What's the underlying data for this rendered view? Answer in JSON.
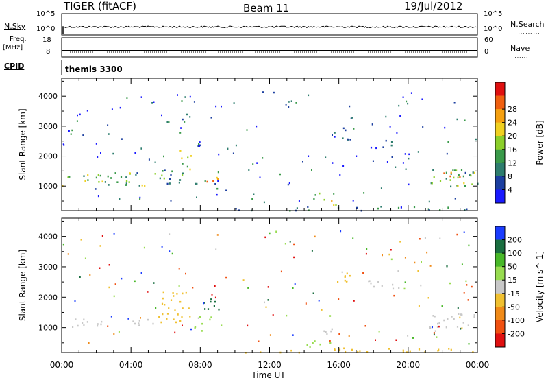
{
  "header": {
    "radar": "TIGER (fitACF)",
    "beam": "Beam 11",
    "date": "19/Jul/2012"
  },
  "strip_labels": {
    "nsky": "N.Sky",
    "nsearch": "N.Search",
    "freq_top": "Freq.",
    "freq_unit": "[MHz]",
    "nave": "Nave",
    "cpid": "CPID",
    "cpid_name": "themis 3300",
    "noise_left_ticks": [
      "10^5",
      "10^0"
    ],
    "noise_right_ticks": [
      "10^5",
      "10^0"
    ],
    "freq_left_ticks": [
      "18",
      "8"
    ],
    "nave_right_ticks": [
      "60",
      "0"
    ]
  },
  "chart_data": [
    {
      "type": "heatmap",
      "panel": "power",
      "ylabel": "Slant Range [km]",
      "ylim": [
        180,
        4600
      ],
      "yticks": [
        1000,
        2000,
        3000,
        4000
      ],
      "xlim": [
        0,
        24
      ],
      "colorbar": {
        "label": "Power [dB]",
        "ticks": [
          "4",
          "8",
          "12",
          "16",
          "20",
          "24",
          "28"
        ],
        "colors": [
          "#1a1aff",
          "#1c3fa0",
          "#2e7d6e",
          "#3a9a4a",
          "#8ccf2a",
          "#f0d020",
          "#f5a010",
          "#f06010",
          "#e01010"
        ]
      },
      "regions": [
        {
          "t": [
            0.0,
            2.5
          ],
          "r": [
            1000,
            1400
          ],
          "v": 14
        },
        {
          "t": [
            2.5,
            5.0
          ],
          "r": [
            1000,
            1500
          ],
          "v": 12
        },
        {
          "t": [
            5.0,
            7.0
          ],
          "r": [
            1100,
            1700
          ],
          "v": 10
        },
        {
          "t": [
            6.8,
            7.5
          ],
          "r": [
            1500,
            2300
          ],
          "v": 14
        },
        {
          "t": [
            7.5,
            9.0
          ],
          "r": [
            900,
            1200
          ],
          "v": 8
        },
        {
          "t": [
            8.2,
            9.0
          ],
          "r": [
            1050,
            1400
          ],
          "v": 20
        },
        {
          "t": [
            7.8,
            8.3
          ],
          "r": [
            2100,
            2600
          ],
          "v": 6
        },
        {
          "t": [
            14.2,
            15.2
          ],
          "r": [
            500,
            800
          ],
          "v": 12
        },
        {
          "t": [
            15.0,
            16.0
          ],
          "r": [
            300,
            600
          ],
          "v": 16
        },
        {
          "t": [
            10.0,
            24.0
          ],
          "r": [
            200,
            350
          ],
          "v": 8
        },
        {
          "t": [
            15.5,
            17.0
          ],
          "r": [
            2500,
            2900
          ],
          "v": 6
        },
        {
          "t": [
            17.5,
            19.5
          ],
          "r": [
            2300,
            2600
          ],
          "v": 6
        },
        {
          "t": [
            21.2,
            23.8
          ],
          "r": [
            1000,
            1600
          ],
          "v": 12
        },
        {
          "t": [
            22.0,
            23.2
          ],
          "r": [
            1200,
            1500
          ],
          "v": 22
        }
      ]
    },
    {
      "type": "heatmap",
      "panel": "velocity",
      "ylabel": "Slant Range [km]",
      "xlabel": "Time UT",
      "ylim": [
        180,
        4600
      ],
      "yticks": [
        1000,
        2000,
        3000,
        4000
      ],
      "xlim": [
        0,
        24
      ],
      "xticks": [
        "00:00",
        "04:00",
        "08:00",
        "12:00",
        "16:00",
        "20:00",
        "00:00"
      ],
      "colorbar": {
        "label": "Velocity [m s^-1]",
        "ticks": [
          "200",
          "100",
          "50",
          "15",
          "-15",
          "-50",
          "-100",
          "-200"
        ],
        "colors": [
          "#1a3cff",
          "#1a6e40",
          "#48b828",
          "#98dc50",
          "#c8c8c8",
          "#f0c030",
          "#f08a18",
          "#f05010",
          "#e01010"
        ]
      },
      "regions": [
        {
          "t": [
            0.0,
            5.5
          ],
          "r": [
            1050,
            1350
          ],
          "v": 0
        },
        {
          "t": [
            5.5,
            7.5
          ],
          "r": [
            1200,
            2200
          ],
          "v": -30
        },
        {
          "t": [
            7.5,
            9.0
          ],
          "r": [
            900,
            1400
          ],
          "v": 30
        },
        {
          "t": [
            8.0,
            9.2
          ],
          "r": [
            1600,
            2100
          ],
          "v": 150
        },
        {
          "t": [
            14.0,
            15.5
          ],
          "r": [
            300,
            600
          ],
          "v": 30
        },
        {
          "t": [
            15.0,
            16.0
          ],
          "r": [
            650,
            1000
          ],
          "v": 0
        },
        {
          "t": [
            10.0,
            24.0
          ],
          "r": [
            200,
            350
          ],
          "v": -30
        },
        {
          "t": [
            15.5,
            17.0
          ],
          "r": [
            2500,
            2900
          ],
          "v": -30
        },
        {
          "t": [
            17.5,
            19.5
          ],
          "r": [
            2300,
            2600
          ],
          "v": 0
        },
        {
          "t": [
            21.2,
            23.8
          ],
          "r": [
            1000,
            1600
          ],
          "v": 0
        },
        {
          "t": [
            22.0,
            22.6
          ],
          "r": [
            3000,
            3200
          ],
          "v": 150
        }
      ]
    }
  ]
}
